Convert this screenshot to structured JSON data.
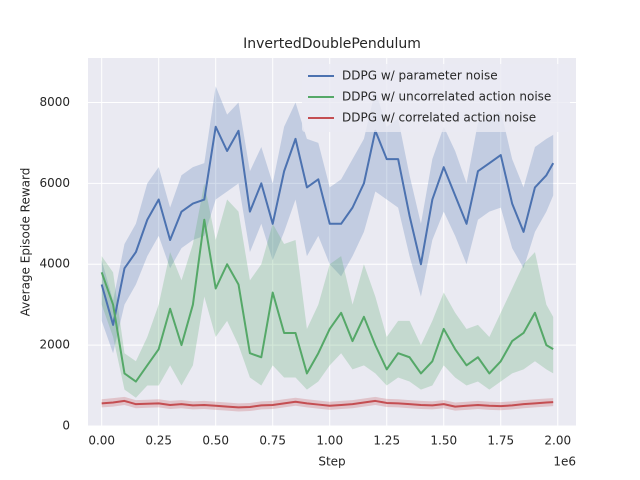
{
  "chart_data": {
    "type": "line",
    "title": "InvertedDoublePendulum",
    "x_label": "Step",
    "y_label": "Average Episode Reward",
    "x_offset_label": "1e6",
    "xlim": [
      -0.06,
      2.08
    ],
    "ylim": [
      0,
      9100
    ],
    "xticks": [
      {
        "value": 0,
        "label": "0.00"
      },
      {
        "value": 0.25,
        "label": "0.25"
      },
      {
        "value": 0.5,
        "label": "0.50"
      },
      {
        "value": 0.75,
        "label": "0.75"
      },
      {
        "value": 1,
        "label": "1.00"
      },
      {
        "value": 1.25,
        "label": "1.25"
      },
      {
        "value": 1.5,
        "label": "1.50"
      },
      {
        "value": 1.75,
        "label": "1.75"
      },
      {
        "value": 2,
        "label": "2.00"
      }
    ],
    "yticks": [
      0,
      2000,
      4000,
      6000,
      8000
    ],
    "grid": true,
    "legend": "upper right",
    "x": [
      0,
      0.05,
      0.1,
      0.15,
      0.2,
      0.25,
      0.3,
      0.35,
      0.4,
      0.45,
      0.5,
      0.55,
      0.6,
      0.65,
      0.7,
      0.75,
      0.8,
      0.85,
      0.9,
      0.95,
      1.0,
      1.05,
      1.1,
      1.15,
      1.2,
      1.25,
      1.3,
      1.35,
      1.4,
      1.45,
      1.5,
      1.55,
      1.6,
      1.65,
      1.7,
      1.75,
      1.8,
      1.85,
      1.9,
      1.95,
      1.98
    ],
    "series": [
      {
        "name": "DDPG w/ parameter noise",
        "color": "#4c72b0",
        "values": [
          3500,
          2500,
          3900,
          4300,
          5100,
          5600,
          4600,
          5300,
          5500,
          5600,
          7400,
          6800,
          7300,
          5300,
          6000,
          5000,
          6300,
          7100,
          5900,
          6100,
          5000,
          5000,
          5400,
          6000,
          7300,
          6600,
          6600,
          5200,
          4000,
          5600,
          6400,
          5700,
          5000,
          6300,
          6500,
          6700,
          5500,
          4800,
          5900,
          6200,
          6500
        ],
        "lower": [
          2600,
          1800,
          3000,
          3500,
          4200,
          4700,
          3900,
          4400,
          4600,
          4700,
          5600,
          5800,
          6000,
          4300,
          5000,
          4100,
          4800,
          5600,
          4200,
          4700,
          4000,
          3700,
          4200,
          4800,
          5800,
          5600,
          5400,
          4200,
          3200,
          4600,
          5300,
          4700,
          4000,
          5100,
          5300,
          5400,
          4400,
          3900,
          4800,
          5300,
          5700
        ],
        "upper": [
          4100,
          3100,
          4500,
          5000,
          6000,
          6400,
          5400,
          6200,
          6400,
          6500,
          8400,
          7700,
          8000,
          6300,
          6900,
          6000,
          7400,
          8000,
          7100,
          7000,
          5900,
          6100,
          6600,
          7100,
          8300,
          7400,
          7600,
          6200,
          5000,
          6600,
          7400,
          6800,
          6000,
          7500,
          7600,
          7800,
          6600,
          5900,
          6900,
          7100,
          7200
        ]
      },
      {
        "name": "DDPG w/ uncorrelated action noise",
        "color": "#55a868",
        "values": [
          3800,
          3000,
          1300,
          1100,
          1500,
          1900,
          2900,
          2000,
          3000,
          5100,
          3400,
          4000,
          3500,
          1800,
          1700,
          3300,
          2300,
          2300,
          1300,
          1800,
          2400,
          2800,
          2100,
          2700,
          2000,
          1400,
          1800,
          1700,
          1300,
          1600,
          2400,
          1900,
          1500,
          1700,
          1300,
          1600,
          2100,
          2300,
          2800,
          2000,
          1900
        ],
        "lower": [
          3000,
          2200,
          900,
          700,
          1000,
          1000,
          1500,
          1000,
          1500,
          3200,
          2200,
          2600,
          2000,
          1200,
          1000,
          1500,
          1200,
          1200,
          900,
          1100,
          1500,
          1800,
          1400,
          1500,
          1300,
          1000,
          1200,
          1100,
          900,
          1000,
          1500,
          1200,
          1000,
          1100,
          900,
          1100,
          1300,
          1400,
          1600,
          1400,
          1300
        ],
        "upper": [
          4200,
          3800,
          1800,
          1600,
          2200,
          3000,
          4300,
          3600,
          4500,
          6000,
          4600,
          5600,
          5300,
          3600,
          4000,
          5000,
          4500,
          4600,
          2400,
          3000,
          4000,
          4200,
          3000,
          4000,
          3200,
          2200,
          2600,
          2600,
          2000,
          2600,
          3300,
          2800,
          2400,
          2500,
          2200,
          2800,
          3400,
          4000,
          4300,
          3000,
          2700
        ]
      },
      {
        "name": "DDPG w/ correlated action noise",
        "color": "#c44e52",
        "values": [
          560,
          580,
          620,
          540,
          550,
          560,
          520,
          540,
          510,
          520,
          500,
          480,
          460,
          470,
          510,
          520,
          560,
          600,
          560,
          530,
          500,
          520,
          540,
          580,
          620,
          570,
          560,
          540,
          520,
          510,
          540,
          480,
          500,
          520,
          500,
          490,
          510,
          540,
          560,
          580,
          590
        ],
        "lower": [
          460,
          480,
          520,
          440,
          450,
          460,
          420,
          440,
          410,
          420,
          400,
          380,
          360,
          370,
          410,
          420,
          460,
          500,
          460,
          430,
          400,
          420,
          440,
          480,
          520,
          470,
          460,
          440,
          420,
          410,
          440,
          380,
          400,
          420,
          400,
          390,
          410,
          440,
          460,
          480,
          490
        ],
        "upper": [
          660,
          690,
          720,
          640,
          650,
          660,
          620,
          640,
          610,
          620,
          600,
          580,
          560,
          570,
          610,
          620,
          660,
          700,
          660,
          630,
          600,
          620,
          640,
          680,
          720,
          670,
          660,
          640,
          620,
          610,
          640,
          580,
          600,
          620,
          600,
          590,
          610,
          640,
          660,
          680,
          690
        ]
      }
    ]
  }
}
